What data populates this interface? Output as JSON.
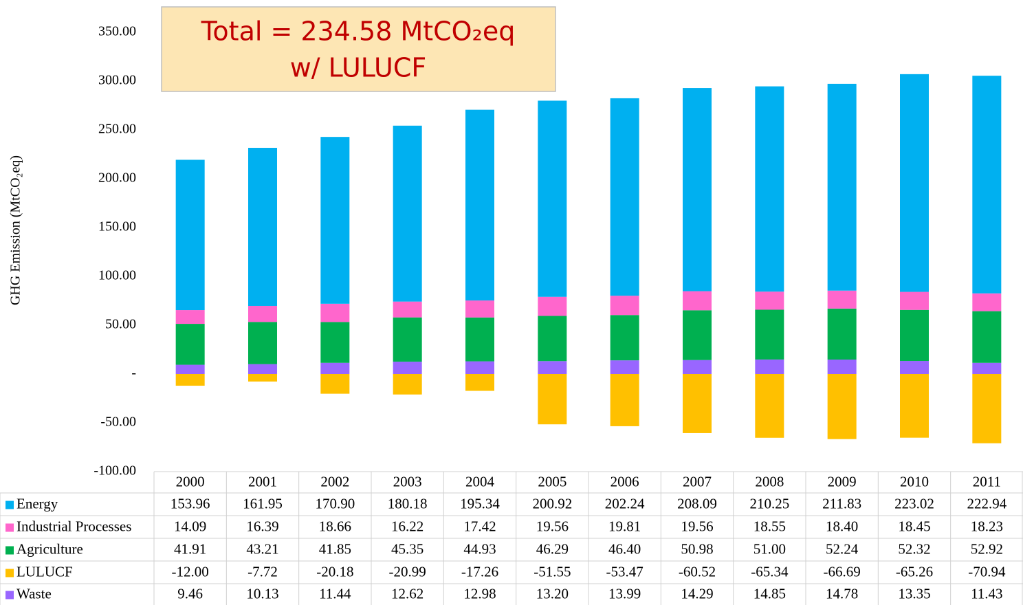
{
  "chart_data": {
    "type": "bar",
    "stacked": true,
    "annotation": [
      "Total = 234.58 MtCO₂eq",
      "w/ LULUCF"
    ],
    "y_label": "GHG Emission (MtCO₂eq)",
    "categories": [
      "2000",
      "2001",
      "2002",
      "2003",
      "2004",
      "2005",
      "2006",
      "2007",
      "2008",
      "2009",
      "2010",
      "2011"
    ],
    "series": [
      {
        "name": "Energy",
        "color": "#00b0f0",
        "values": [
          153.96,
          161.95,
          170.9,
          180.18,
          195.34,
          200.92,
          202.24,
          208.09,
          210.25,
          211.83,
          223.02,
          222.94
        ],
        "value_labels": [
          "153.96",
          "161.95",
          "170.90",
          "180.18",
          "195.34",
          "200.92",
          "202.24",
          "208.09",
          "210.25",
          "211.83",
          "223.02",
          "222.94"
        ]
      },
      {
        "name": "Industrial Processes",
        "color": "#ff66cc",
        "values": [
          14.09,
          16.39,
          18.66,
          16.22,
          17.42,
          19.56,
          19.81,
          19.56,
          18.55,
          18.4,
          18.45,
          18.23
        ],
        "value_labels": [
          "14.09",
          "16.39",
          "18.66",
          "16.22",
          "17.42",
          "19.56",
          "19.81",
          "19.56",
          "18.55",
          "18.40",
          "18.45",
          "18.23"
        ]
      },
      {
        "name": "Agriculture",
        "color": "#00b050",
        "values": [
          41.91,
          43.21,
          41.85,
          45.35,
          44.93,
          46.29,
          46.4,
          50.98,
          51,
          52.24,
          52.32,
          52.92
        ],
        "value_labels": [
          "41.91",
          "43.21",
          "41.85",
          "45.35",
          "44.93",
          "46.29",
          "46.40",
          "50.98",
          "51.00",
          "52.24",
          "52.32",
          "52.92"
        ]
      },
      {
        "name": "LULUCF",
        "color": "#ffc000",
        "values": [
          -12,
          -7.72,
          -20.18,
          -20.99,
          -17.26,
          -51.55,
          -53.47,
          -60.52,
          -65.34,
          -66.69,
          -65.26,
          -70.94
        ],
        "value_labels": [
          "-12.00",
          "-7.72",
          "-20.18",
          "-20.99",
          "-17.26",
          "-51.55",
          "-53.47",
          "-60.52",
          "-65.34",
          "-66.69",
          "-65.26",
          "-70.94"
        ]
      },
      {
        "name": "Waste",
        "color": "#9966ff",
        "values": [
          9.46,
          10.13,
          11.44,
          12.62,
          12.98,
          13.2,
          13.99,
          14.29,
          14.85,
          14.78,
          13.35,
          11.43
        ],
        "value_labels": [
          "9.46",
          "10.13",
          "11.44",
          "12.62",
          "12.98",
          "13.20",
          "13.99",
          "14.29",
          "14.85",
          "14.78",
          "13.35",
          "11.43"
        ]
      }
    ],
    "ylim": [
      -100,
      350
    ],
    "yticks": [
      {
        "value": -100,
        "label": "-100.00"
      },
      {
        "value": -50,
        "label": "-50.00"
      },
      {
        "value": 0,
        "label": "-"
      },
      {
        "value": 50,
        "label": "50.00"
      },
      {
        "value": 100,
        "label": "100.00"
      },
      {
        "value": 150,
        "label": "150.00"
      },
      {
        "value": 200,
        "label": "200.00"
      },
      {
        "value": 250,
        "label": "250.00"
      },
      {
        "value": 300,
        "label": "300.00"
      },
      {
        "value": 350,
        "label": "350.00"
      }
    ],
    "grid": false
  }
}
